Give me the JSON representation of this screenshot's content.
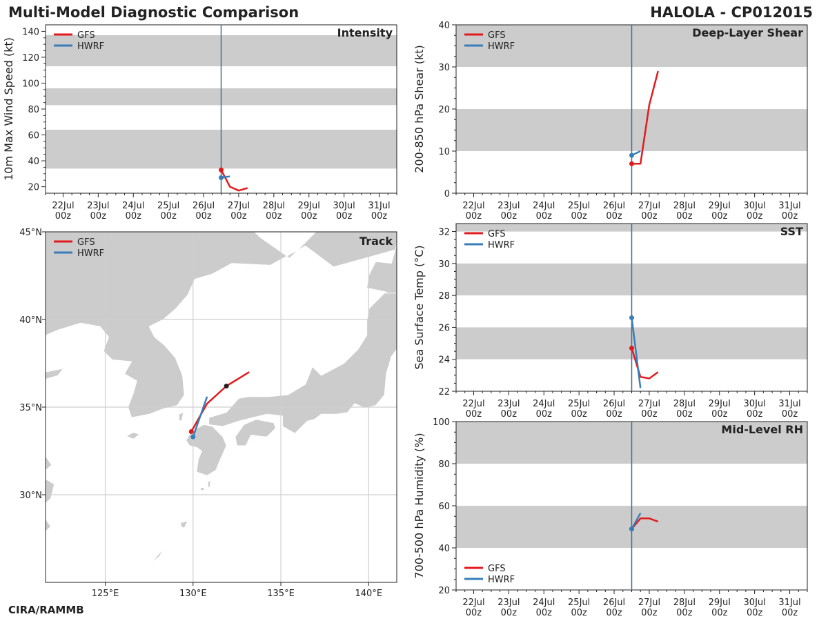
{
  "header": {
    "left_title": "Multi-Model Diagnostic Comparison",
    "right_title": "HALOLA - CP012015",
    "credit": "CIRA/RAMMB"
  },
  "colors": {
    "GFS": "#e31a1c",
    "HWRF": "#377eb8",
    "band": "#cccccc",
    "land": "#cccccc",
    "current_line": "#4c6a8c"
  },
  "legend": [
    "GFS",
    "HWRF"
  ],
  "time_axis": {
    "ticks": [
      "22Jul",
      "23Jul",
      "24Jul",
      "25Jul",
      "26Jul",
      "27Jul",
      "28Jul",
      "29Jul",
      "30Jul",
      "31Jul"
    ],
    "tick_sub": "00z",
    "xlim_days": [
      21.5,
      31.5
    ],
    "current_time_day": 26.5
  },
  "chart_data": [
    {
      "id": "intensity",
      "type": "line",
      "title": "Intensity",
      "ylabel": "10m Max Wind Speed (kt)",
      "ylim": [
        15,
        145
      ],
      "yticks": [
        20,
        40,
        60,
        80,
        100,
        120,
        140
      ],
      "bands": [
        [
          34,
          64
        ],
        [
          83,
          96
        ],
        [
          113,
          137
        ]
      ],
      "legend_pos": "top-left",
      "series": [
        {
          "name": "GFS",
          "x": [
            26.5,
            26.75,
            27.0,
            27.25
          ],
          "y": [
            33,
            20,
            17,
            19
          ]
        },
        {
          "name": "HWRF",
          "x": [
            26.5,
            26.75
          ],
          "y": [
            27,
            28
          ]
        }
      ]
    },
    {
      "id": "shear",
      "type": "line",
      "title": "Deep-Layer Shear",
      "ylabel": "200-850 hPa Shear (kt)",
      "ylim": [
        0,
        40
      ],
      "yticks": [
        0,
        10,
        20,
        30,
        40
      ],
      "bands": [
        [
          10,
          20
        ],
        [
          30,
          40
        ]
      ],
      "legend_pos": "top-left",
      "series": [
        {
          "name": "GFS",
          "x": [
            26.5,
            26.75,
            27.0,
            27.25
          ],
          "y": [
            7,
            7,
            21,
            29
          ]
        },
        {
          "name": "HWRF",
          "x": [
            26.5,
            26.75
          ],
          "y": [
            9,
            10
          ]
        }
      ]
    },
    {
      "id": "sst",
      "type": "line",
      "title": "SST",
      "ylabel": "Sea Surface Temp (°C)",
      "ylim": [
        22,
        32.5
      ],
      "yticks": [
        22,
        24,
        26,
        28,
        30,
        32
      ],
      "bands": [
        [
          24,
          26
        ],
        [
          28,
          30
        ],
        [
          32,
          32.5
        ]
      ],
      "legend_pos": "top-left",
      "series": [
        {
          "name": "GFS",
          "x": [
            26.5,
            26.75,
            27.0,
            27.25
          ],
          "y": [
            24.7,
            22.9,
            22.8,
            23.2
          ]
        },
        {
          "name": "HWRF",
          "x": [
            26.5,
            26.75
          ],
          "y": [
            26.6,
            22.2
          ]
        }
      ]
    },
    {
      "id": "rh",
      "type": "line",
      "title": "Mid-Level RH",
      "ylabel": "700-500 hPa Humidity (%)",
      "ylim": [
        20,
        100
      ],
      "yticks": [
        20,
        40,
        60,
        80,
        100
      ],
      "bands": [
        [
          40,
          60
        ],
        [
          80,
          100
        ]
      ],
      "legend_pos": "bottom-left",
      "series": [
        {
          "name": "GFS",
          "x": [
            26.5,
            26.75,
            27.0,
            27.25
          ],
          "y": [
            49,
            54,
            54,
            52.5
          ]
        },
        {
          "name": "HWRF",
          "x": [
            26.5,
            26.75
          ],
          "y": [
            49,
            56.5
          ]
        }
      ]
    },
    {
      "id": "track",
      "type": "scatter",
      "title": "Track",
      "xlim": [
        121.6,
        141.6
      ],
      "ylim": [
        25,
        45
      ],
      "xticks": [
        125,
        130,
        135,
        140
      ],
      "xtick_labels": [
        "125°E",
        "130°E",
        "135°E",
        "140°E"
      ],
      "yticks": [
        30,
        35,
        40,
        45
      ],
      "ytick_labels": [
        "30°N",
        "35°N",
        "40°N",
        "45°N"
      ],
      "legend_pos": "top-left",
      "series": [
        {
          "name": "GFS",
          "lon": [
            129.9,
            130.8,
            131.9,
            133.2
          ],
          "lat": [
            33.6,
            35.2,
            36.2,
            37.0
          ],
          "marker_24h": [
            131.9,
            36.2
          ]
        },
        {
          "name": "HWRF",
          "lon": [
            130.0,
            130.8
          ],
          "lat": [
            33.3,
            35.6
          ]
        }
      ]
    }
  ]
}
